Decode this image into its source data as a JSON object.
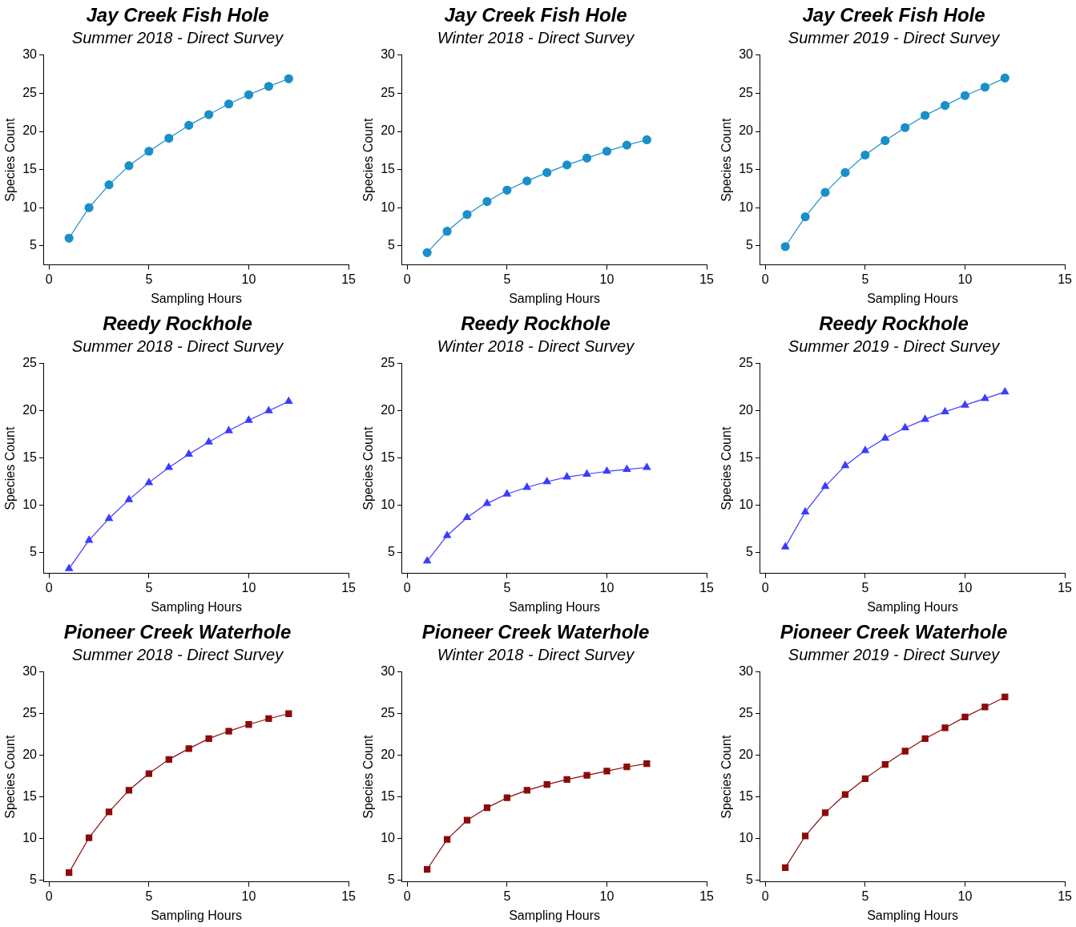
{
  "chart_data": [
    {
      "type": "line",
      "title": "Jay Creek Fish Hole",
      "subtitle": "Summer 2018 - Direct Survey",
      "xlabel": "Sampling Hours",
      "ylabel": "Species Count",
      "x": [
        1,
        2,
        3,
        4,
        5,
        6,
        7,
        8,
        9,
        10,
        11,
        12
      ],
      "values": [
        6.0,
        10.0,
        13.0,
        15.5,
        17.4,
        19.1,
        20.8,
        22.2,
        23.6,
        24.8,
        25.9,
        26.9
      ],
      "color": "#1a8fc9",
      "marker": "circle",
      "xlim": [
        -0.25,
        15
      ],
      "ylim": [
        2.5,
        30
      ],
      "xticks": [
        0,
        5,
        10,
        15
      ],
      "yticks": [
        5,
        10,
        15,
        20,
        25,
        30
      ],
      "grid": false,
      "legend": false
    },
    {
      "type": "line",
      "title": "Jay Creek Fish Hole",
      "subtitle": "Winter 2018 - Direct Survey",
      "xlabel": "Sampling Hours",
      "ylabel": "Species Count",
      "x": [
        1,
        2,
        3,
        4,
        5,
        6,
        7,
        8,
        9,
        10,
        11,
        12
      ],
      "values": [
        4.1,
        6.9,
        9.1,
        10.8,
        12.3,
        13.5,
        14.6,
        15.6,
        16.5,
        17.4,
        18.2,
        18.9
      ],
      "color": "#1a8fc9",
      "marker": "circle",
      "xlim": [
        -0.25,
        15
      ],
      "ylim": [
        2.5,
        30
      ],
      "xticks": [
        0,
        5,
        10,
        15
      ],
      "yticks": [
        5,
        10,
        15,
        20,
        25,
        30
      ],
      "grid": false,
      "legend": false
    },
    {
      "type": "line",
      "title": "Jay Creek Fish Hole",
      "subtitle": "Summer 2019 - Direct Survey",
      "xlabel": "Sampling Hours",
      "ylabel": "Species Count",
      "x": [
        1,
        2,
        3,
        4,
        5,
        6,
        7,
        8,
        9,
        10,
        11,
        12
      ],
      "values": [
        4.9,
        8.8,
        12.0,
        14.6,
        16.9,
        18.8,
        20.5,
        22.1,
        23.4,
        24.7,
        25.8,
        27.0
      ],
      "color": "#1a8fc9",
      "marker": "circle",
      "xlim": [
        -0.25,
        15
      ],
      "ylim": [
        2.5,
        30
      ],
      "xticks": [
        0,
        5,
        10,
        15
      ],
      "yticks": [
        5,
        10,
        15,
        20,
        25,
        30
      ],
      "grid": false,
      "legend": false
    },
    {
      "type": "line",
      "title": "Reedy Rockhole",
      "subtitle": "Summer 2018 - Direct Survey",
      "xlabel": "Sampling Hours",
      "ylabel": "Species Count",
      "x": [
        1,
        2,
        3,
        4,
        5,
        6,
        7,
        8,
        9,
        10,
        11,
        12
      ],
      "values": [
        3.3,
        6.3,
        8.6,
        10.6,
        12.4,
        14.0,
        15.4,
        16.7,
        17.9,
        19.0,
        20.0,
        21.0
      ],
      "color": "#3b3bff",
      "marker": "triangle",
      "xlim": [
        -0.25,
        15
      ],
      "ylim": [
        2.8,
        25
      ],
      "xticks": [
        0,
        5,
        10,
        15
      ],
      "yticks": [
        5,
        10,
        15,
        20,
        25
      ],
      "grid": false,
      "legend": false
    },
    {
      "type": "line",
      "title": "Reedy Rockhole",
      "subtitle": "Winter 2018 - Direct Survey",
      "xlabel": "Sampling Hours",
      "ylabel": "Species Count",
      "x": [
        1,
        2,
        3,
        4,
        5,
        6,
        7,
        8,
        9,
        10,
        11,
        12
      ],
      "values": [
        4.1,
        6.8,
        8.7,
        10.2,
        11.2,
        11.9,
        12.5,
        13.0,
        13.3,
        13.6,
        13.8,
        14.0
      ],
      "color": "#3b3bff",
      "marker": "triangle",
      "xlim": [
        -0.25,
        15
      ],
      "ylim": [
        2.8,
        25
      ],
      "xticks": [
        0,
        5,
        10,
        15
      ],
      "yticks": [
        5,
        10,
        15,
        20,
        25
      ],
      "grid": false,
      "legend": false
    },
    {
      "type": "line",
      "title": "Reedy Rockhole",
      "subtitle": "Summer 2019 - Direct Survey",
      "xlabel": "Sampling Hours",
      "ylabel": "Species Count",
      "x": [
        1,
        2,
        3,
        4,
        5,
        6,
        7,
        8,
        9,
        10,
        11,
        12
      ],
      "values": [
        5.6,
        9.3,
        12.0,
        14.2,
        15.8,
        17.1,
        18.2,
        19.1,
        19.9,
        20.6,
        21.3,
        22.0
      ],
      "color": "#3b3bff",
      "marker": "triangle",
      "xlim": [
        -0.25,
        15
      ],
      "ylim": [
        2.8,
        25
      ],
      "xticks": [
        0,
        5,
        10,
        15
      ],
      "yticks": [
        5,
        10,
        15,
        20,
        25
      ],
      "grid": false,
      "legend": false
    },
    {
      "type": "line",
      "title": "Pioneer Creek Waterhole",
      "subtitle": "Summer 2018 - Direct Survey",
      "xlabel": "Sampling Hours",
      "ylabel": "Species Count",
      "x": [
        1,
        2,
        3,
        4,
        5,
        6,
        7,
        8,
        9,
        10,
        11,
        12
      ],
      "values": [
        5.9,
        10.1,
        13.2,
        15.8,
        17.8,
        19.5,
        20.8,
        22.0,
        22.9,
        23.7,
        24.4,
        25.0
      ],
      "color": "#8c0a0a",
      "marker": "square",
      "xlim": [
        -0.25,
        15
      ],
      "ylim": [
        4.8,
        30
      ],
      "xticks": [
        0,
        5,
        10,
        15
      ],
      "yticks": [
        5,
        10,
        15,
        20,
        25,
        30
      ],
      "grid": false,
      "legend": false
    },
    {
      "type": "line",
      "title": "Pioneer Creek Waterhole",
      "subtitle": "Winter 2018 - Direct Survey",
      "xlabel": "Sampling Hours",
      "ylabel": "Species Count",
      "x": [
        1,
        2,
        3,
        4,
        5,
        6,
        7,
        8,
        9,
        10,
        11,
        12
      ],
      "values": [
        6.3,
        9.9,
        12.2,
        13.7,
        14.9,
        15.8,
        16.5,
        17.1,
        17.6,
        18.1,
        18.6,
        19.0
      ],
      "color": "#8c0a0a",
      "marker": "square",
      "xlim": [
        -0.25,
        15
      ],
      "ylim": [
        4.8,
        30
      ],
      "xticks": [
        0,
        5,
        10,
        15
      ],
      "yticks": [
        5,
        10,
        15,
        20,
        25,
        30
      ],
      "grid": false,
      "legend": false
    },
    {
      "type": "line",
      "title": "Pioneer Creek Waterhole",
      "subtitle": "Summer 2019 - Direct Survey",
      "xlabel": "Sampling Hours",
      "ylabel": "Species Count",
      "x": [
        1,
        2,
        3,
        4,
        5,
        6,
        7,
        8,
        9,
        10,
        11,
        12
      ],
      "values": [
        6.5,
        10.3,
        13.1,
        15.3,
        17.2,
        18.9,
        20.5,
        22.0,
        23.3,
        24.6,
        25.8,
        27.0
      ],
      "color": "#8c0a0a",
      "marker": "square",
      "xlim": [
        -0.25,
        15
      ],
      "ylim": [
        4.8,
        30
      ],
      "xticks": [
        0,
        5,
        10,
        15
      ],
      "yticks": [
        5,
        10,
        15,
        20,
        25,
        30
      ],
      "grid": false,
      "legend": false
    }
  ]
}
